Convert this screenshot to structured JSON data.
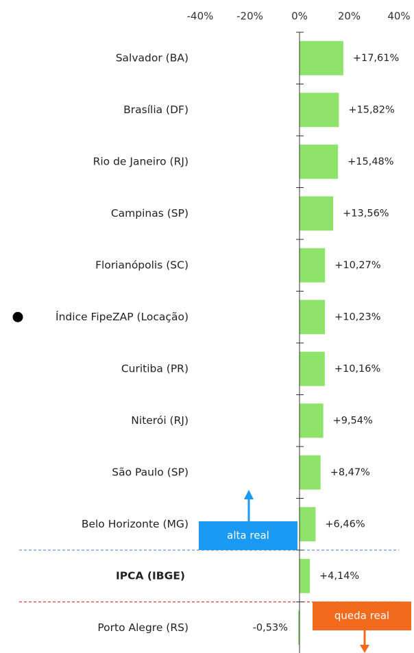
{
  "chart_data": {
    "type": "bar",
    "orientation": "horizontal",
    "categories": [
      "Salvador (BA)",
      "Brasília (DF)",
      "Rio de Janeiro (RJ)",
      "Campinas (SP)",
      "Florianópolis (SC)",
      "Índice FipeZAP (Locação)",
      "Curitiba (PR)",
      "Niterói (RJ)",
      "São Paulo (SP)",
      "Belo Horizonte (MG)",
      "IPCA (IBGE)",
      "Porto Alegre (RS)"
    ],
    "values": [
      17.61,
      15.82,
      15.48,
      13.56,
      10.27,
      10.23,
      10.16,
      9.54,
      8.47,
      6.46,
      4.14,
      -0.53
    ],
    "value_labels": [
      "+17,61%",
      "+15,82%",
      "+15,48%",
      "+13,56%",
      "+10,27%",
      "+10,23%",
      "+10,16%",
      "+9,54%",
      "+8,47%",
      "+6,46%",
      "+4,14%",
      "-0,53%"
    ],
    "color": "#8fe36a",
    "xticks": [
      {
        "value": -40,
        "label": "-40%"
      },
      {
        "value": -20,
        "label": "-20%"
      },
      {
        "value": 0,
        "label": "0%"
      },
      {
        "value": 20,
        "label": "20%"
      },
      {
        "value": 40,
        "label": "40%"
      }
    ],
    "annotations": [
      {
        "text": "alta real",
        "color": "#1a9af2"
      },
      {
        "text": "queda real",
        "color": "#f26a1b"
      }
    ],
    "grid": false
  }
}
